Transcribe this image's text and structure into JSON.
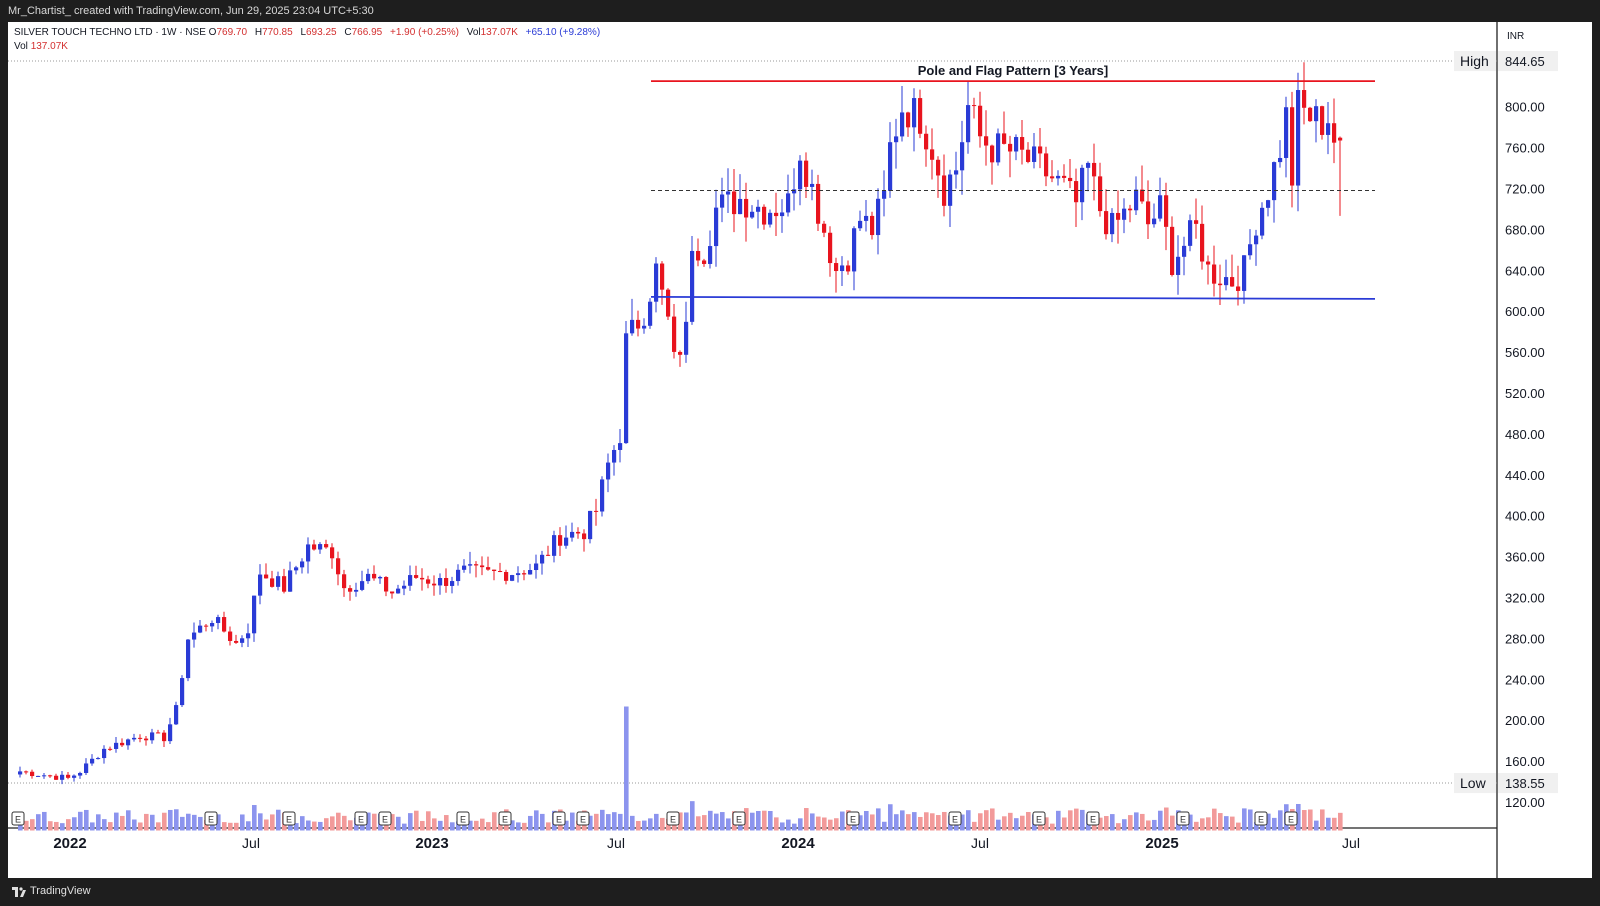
{
  "header": {
    "caption": "Mr_Chartist_ created with TradingView.com, Jun 29, 2025 23:04 UTC+5:30"
  },
  "legend": {
    "symbol": "SILVER TOUCH TECHNO LTD · 1W · NSE",
    "o_label": "O",
    "o_value": "769.70",
    "h_label": "H",
    "h_value": "770.85",
    "l_label": "L",
    "l_value": "693.25",
    "c_label": "C",
    "c_value": "766.95",
    "change": "+1.90 (+0.25%)",
    "vol_label": "Vol",
    "vol_value": "137.07K",
    "vol_change": "+65.10 (+9.28%)",
    "vol2_label": "Vol",
    "vol2_value": "137.07K"
  },
  "footer": {
    "brand": "TradingView"
  },
  "colors": {
    "up": "#2a3bd6",
    "down": "#e8141e",
    "up_volume": "#8c94ee",
    "down_volume": "#f29a9a",
    "resistance": "#e8141e",
    "support": "#2a3bd6"
  },
  "chart_data": {
    "type": "candlestick",
    "title": "",
    "xlabel": "",
    "ylabel": "",
    "currency": "INR",
    "ylim": [
      100,
      860
    ],
    "y_ticks": [
      "120.00",
      "160.00",
      "200.00",
      "240.00",
      "280.00",
      "320.00",
      "360.00",
      "400.00",
      "440.00",
      "480.00",
      "520.00",
      "560.00",
      "600.00",
      "640.00",
      "680.00",
      "720.00",
      "760.00",
      "800.00"
    ],
    "x_ticks": [
      "2022",
      "Jul",
      "2023",
      "Jul",
      "2024",
      "Jul",
      "2025",
      "Jul"
    ],
    "high_label": "High",
    "high_value": "844.65",
    "low_label": "Low",
    "low_value": "138.55",
    "earnings_marker": "E",
    "annotation": "Pole and Flag Pattern [3 Years]",
    "resistance_level": 825,
    "support_level": 613,
    "midline_level": 718,
    "anchors": [
      [
        0,
        150
      ],
      [
        8,
        143
      ],
      [
        10,
        150
      ],
      [
        14,
        172
      ],
      [
        20,
        185
      ],
      [
        24,
        183
      ],
      [
        26,
        210
      ],
      [
        28,
        280
      ],
      [
        32,
        300
      ],
      [
        36,
        275
      ],
      [
        38,
        290
      ],
      [
        40,
        345
      ],
      [
        44,
        330
      ],
      [
        48,
        370
      ],
      [
        52,
        365
      ],
      [
        54,
        330
      ],
      [
        58,
        340
      ],
      [
        62,
        325
      ],
      [
        66,
        340
      ],
      [
        70,
        335
      ],
      [
        74,
        345
      ],
      [
        78,
        343
      ],
      [
        82,
        345
      ],
      [
        86,
        350
      ],
      [
        90,
        380
      ],
      [
        94,
        385
      ],
      [
        96,
        405
      ],
      [
        98,
        450
      ],
      [
        100,
        480
      ],
      [
        101,
        570
      ],
      [
        102,
        580
      ],
      [
        104,
        600
      ],
      [
        106,
        640
      ],
      [
        108,
        590
      ],
      [
        109,
        550
      ],
      [
        111,
        580
      ],
      [
        112,
        670
      ],
      [
        114,
        660
      ],
      [
        116,
        700
      ],
      [
        120,
        710
      ],
      [
        124,
        700
      ],
      [
        128,
        705
      ],
      [
        130,
        760
      ],
      [
        132,
        720
      ],
      [
        134,
        680
      ],
      [
        136,
        640
      ],
      [
        138,
        655
      ],
      [
        140,
        690
      ],
      [
        142,
        680
      ],
      [
        144,
        710
      ],
      [
        145,
        760
      ],
      [
        147,
        800
      ],
      [
        150,
        790
      ],
      [
        152,
        760
      ],
      [
        154,
        720
      ],
      [
        156,
        740
      ],
      [
        158,
        800
      ],
      [
        160,
        770
      ],
      [
        162,
        760
      ],
      [
        166,
        755
      ],
      [
        170,
        740
      ],
      [
        174,
        720
      ],
      [
        176,
        705
      ],
      [
        178,
        740
      ],
      [
        180,
        700
      ],
      [
        182,
        680
      ],
      [
        184,
        695
      ],
      [
        186,
        710
      ],
      [
        188,
        685
      ],
      [
        190,
        700
      ],
      [
        192,
        650
      ],
      [
        194,
        665
      ],
      [
        196,
        680
      ],
      [
        198,
        640
      ],
      [
        200,
        635
      ],
      [
        202,
        630
      ],
      [
        204,
        640
      ],
      [
        206,
        690
      ],
      [
        208,
        720
      ],
      [
        210,
        760
      ],
      [
        211,
        790
      ],
      [
        212,
        730
      ],
      [
        213,
        800
      ],
      [
        215,
        790
      ],
      [
        217,
        785
      ],
      [
        218,
        790
      ],
      [
        219,
        768
      ],
      [
        220,
        766.95
      ]
    ],
    "n_weeks": 221,
    "volume_spike_week": 101
  }
}
